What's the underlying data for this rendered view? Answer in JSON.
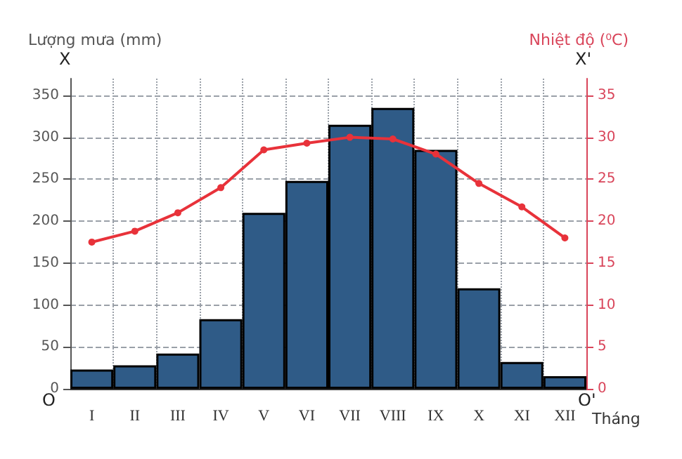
{
  "chart_data": {
    "type": "bar",
    "categories": [
      "I",
      "II",
      "III",
      "IV",
      "V",
      "VI",
      "VII",
      "VIII",
      "IX",
      "X",
      "XI",
      "XII"
    ],
    "ylabel": "Lượng mưa (mm)",
    "y2label": "Nhiệt độ (⁰C)",
    "xlabel": "Tháng",
    "series": [
      {
        "color": "#2f5b87",
        "values": [
          23,
          28,
          42,
          83,
          210,
          248,
          315,
          335,
          285,
          120,
          32,
          15
        ]
      },
      {
        "type": "line",
        "axis": "y2",
        "color": "#e8323a",
        "values": [
          17.5,
          18.8,
          21,
          24,
          28.5,
          29.3,
          30,
          29.8,
          28,
          24.5,
          21.7,
          18
        ]
      }
    ],
    "ylim": [
      0,
      370
    ],
    "yticks": [
      0,
      50,
      100,
      150,
      200,
      250,
      300,
      350
    ],
    "y2lim": [
      0,
      37
    ],
    "y2ticks": [
      0,
      5,
      10,
      15,
      20,
      25,
      30,
      35
    ],
    "grid": true,
    "marker": "circle",
    "line_style": "solid",
    "annotations": [
      "X",
      "O",
      "X'",
      "O'"
    ]
  }
}
